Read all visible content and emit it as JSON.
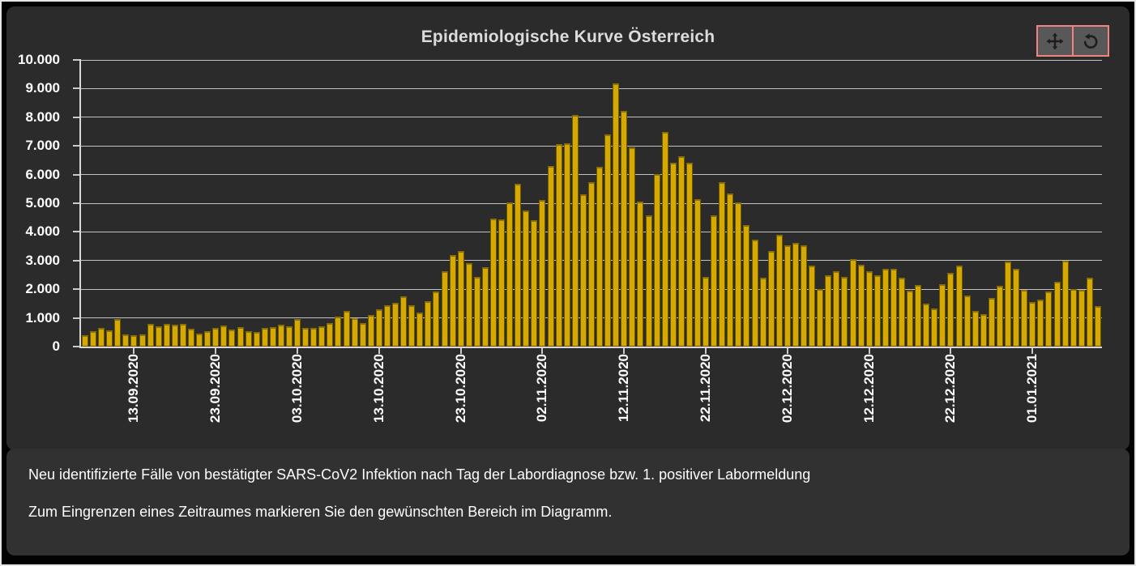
{
  "window": {
    "background": "#000000",
    "frame_border": "#e6e6e6"
  },
  "chart_panel": {
    "bg": "#2b2b2b",
    "toolbar": {
      "pan_button_icon": "move-arrows-icon",
      "reset_button_icon": "rotate-reset-icon",
      "button_bg": "#585858",
      "button_border": "#f0837e",
      "icon_color": "#1d1d1d"
    }
  },
  "chart_data": {
    "type": "bar",
    "title": "Epidemiologische Kurve Österreich",
    "xlabel": "",
    "ylabel": "",
    "ylim": [
      0,
      10000
    ],
    "grid": "horizontal",
    "legend": "none",
    "bar_color": "#d5a802",
    "y_ticks": [
      0,
      1000,
      2000,
      3000,
      4000,
      5000,
      6000,
      7000,
      8000,
      9000,
      10000
    ],
    "y_tick_labels": [
      "0",
      "1.000",
      "2.000",
      "3.000",
      "4.000",
      "5.000",
      "6.000",
      "7.000",
      "8.000",
      "9.000",
      "10.000"
    ],
    "x_tick_labels": [
      "13.09.2020",
      "23.09.2020",
      "03.10.2020",
      "13.10.2020",
      "23.10.2020",
      "02.11.2020",
      "12.11.2020",
      "22.11.2020",
      "02.12.2020",
      "12.12.2020",
      "22.12.2020",
      "01.01.2021"
    ],
    "x_tick_bar_indices": [
      6,
      16,
      26,
      36,
      46,
      56,
      66,
      76,
      86,
      96,
      106,
      116
    ],
    "values": [
      400,
      550,
      640,
      560,
      950,
      420,
      400,
      430,
      780,
      700,
      790,
      760,
      800,
      610,
      440,
      530,
      660,
      740,
      590,
      680,
      550,
      500,
      660,
      670,
      760,
      700,
      950,
      660,
      650,
      700,
      810,
      1050,
      1250,
      1000,
      810,
      1090,
      1290,
      1450,
      1520,
      1760,
      1450,
      1200,
      1570,
      1920,
      2630,
      3190,
      3330,
      2910,
      2420,
      2770,
      4460,
      4440,
      5030,
      5690,
      4750,
      4420,
      5120,
      6300,
      7050,
      7100,
      8090,
      5310,
      5740,
      6260,
      7410,
      9170,
      8230,
      6960,
      5070,
      4580,
      6020,
      7500,
      6420,
      6630,
      6420,
      5140,
      2440,
      4580,
      5730,
      5340,
      5030,
      4230,
      3740,
      2390,
      3330,
      3900,
      3520,
      3620,
      3520,
      2820,
      2010,
      2490,
      2630,
      2440,
      3050,
      2860,
      2630,
      2490,
      2720,
      2720,
      2390,
      1940,
      2160,
      1500,
      1330,
      2170,
      2580,
      2830,
      1780,
      1230,
      1120,
      1690,
      2130,
      2980,
      2700,
      1970,
      1560,
      1640,
      1920,
      2270,
      3000,
      2000,
      1990,
      2410,
      1400
    ]
  },
  "footer": {
    "bg": "#313131",
    "line1": "Neu identifizierte Fälle von bestätigter SARS-CoV2 Infektion nach Tag der Labordiagnose bzw. 1. positiver Labormeldung",
    "line2": "Zum Eingrenzen eines Zeitraumes markieren Sie den gewünschten Bereich im Diagramm."
  }
}
